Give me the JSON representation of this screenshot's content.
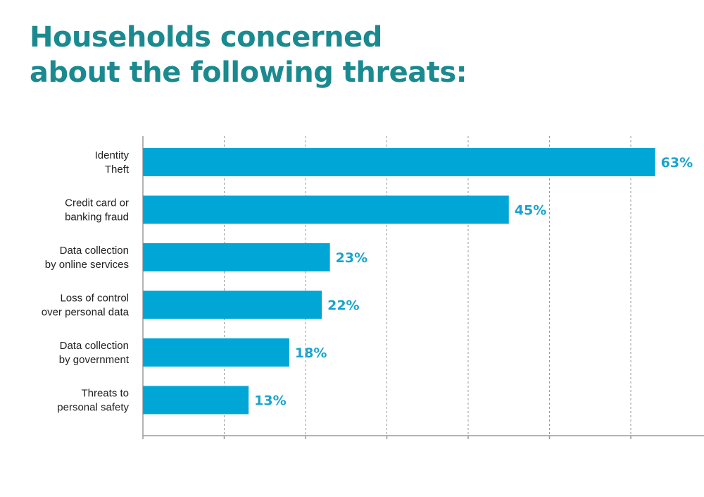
{
  "title": {
    "line1": "Households concerned",
    "line2": "about the following threats:"
  },
  "colors": {
    "title": "#1b8a90",
    "bar": "#00a6d6",
    "value_label": "#1aa3cf",
    "gridline": "#9a9a9a",
    "axis": "#9a9a9a"
  },
  "chart_data": {
    "type": "bar",
    "orientation": "horizontal",
    "categories": [
      [
        "Identity",
        "Theft"
      ],
      [
        "Credit card or",
        "banking fraud"
      ],
      [
        "Data collection",
        "by online services"
      ],
      [
        "Loss of control",
        "over personal data"
      ],
      [
        "Data collection",
        "by government"
      ],
      [
        "Threats to",
        "personal safety"
      ]
    ],
    "values": [
      63,
      45,
      23,
      22,
      18,
      13
    ],
    "value_labels": [
      "63%",
      "45%",
      "23%",
      "22%",
      "18%",
      "13%"
    ],
    "xlim": [
      0,
      80
    ],
    "grid": true,
    "grid_style": "dashed vertical",
    "legend": "none"
  }
}
